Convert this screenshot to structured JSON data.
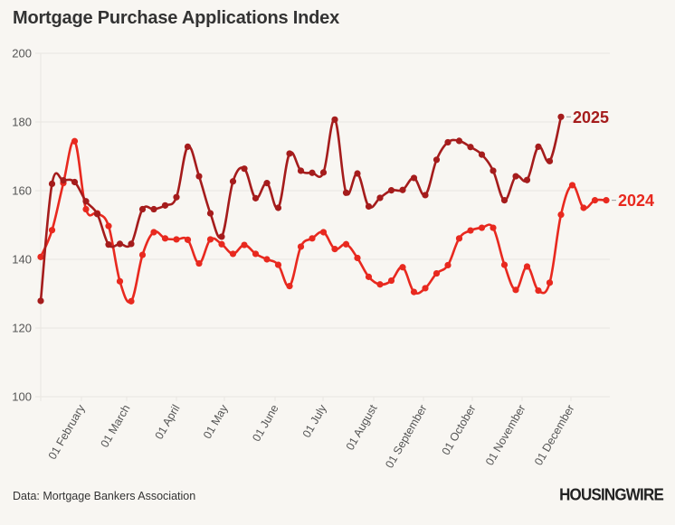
{
  "title": "Mortgage Purchase Applications Index",
  "source": "Data: Mortgage Bankers Association",
  "brand": "HOUSINGWIRE",
  "colors": {
    "series_2025": "#a51c1c",
    "series_2024": "#e8291f",
    "grid": "#e9e6e1",
    "text": "#555555"
  },
  "chart_data": {
    "type": "line",
    "title": "Mortgage Purchase Applications Index",
    "xlabel": "",
    "ylabel": "",
    "ylim": [
      100,
      200
    ],
    "yticks": [
      "100",
      "120",
      "140",
      "160",
      "180",
      "200"
    ],
    "xticks": [
      "01 February",
      "01 March",
      "01 April",
      "01 May",
      "01 June",
      "01 July",
      "01 August",
      "01 September",
      "01 October",
      "01 November",
      "01 December"
    ],
    "x_unit": "weekly observations starting early January",
    "grid": true,
    "legend": "inline labels at line ends (right)",
    "series": [
      {
        "name": "2025",
        "color": "#a51c1c",
        "values": [
          127.9,
          162.0,
          163.0,
          162.5,
          156.9,
          153.2,
          144.3,
          144.5,
          144.5,
          154.6,
          154.6,
          155.7,
          158.1,
          172.8,
          164.2,
          153.4,
          146.6,
          162.7,
          166.4,
          157.8,
          162.2,
          155.0,
          170.8,
          165.8,
          165.2,
          165.3,
          180.7,
          159.4,
          165.0,
          155.4,
          157.9,
          160.1,
          160.2,
          163.7,
          158.7,
          169.0,
          174.1,
          174.5,
          172.7,
          170.5,
          165.8,
          157.2,
          164.2,
          163.1,
          172.8,
          168.6,
          181.5
        ]
      },
      {
        "name": "2024",
        "color": "#e8291f",
        "values": [
          140.7,
          148.5,
          162.2,
          174.4,
          154.6,
          153.4,
          149.7,
          133.6,
          127.8,
          141.3,
          147.9,
          146.1,
          145.8,
          145.7,
          138.8,
          145.8,
          144.4,
          141.6,
          144.2,
          141.6,
          140.0,
          138.4,
          132.2,
          143.7,
          146.1,
          147.9,
          143.0,
          144.4,
          140.4,
          134.9,
          132.7,
          133.8,
          137.7,
          130.5,
          131.6,
          135.9,
          138.3,
          146.1,
          148.4,
          149.2,
          149.2,
          138.4,
          131.1,
          137.9,
          130.9,
          133.2,
          153.0,
          161.6,
          155.0,
          157.2,
          157.2
        ]
      }
    ]
  }
}
